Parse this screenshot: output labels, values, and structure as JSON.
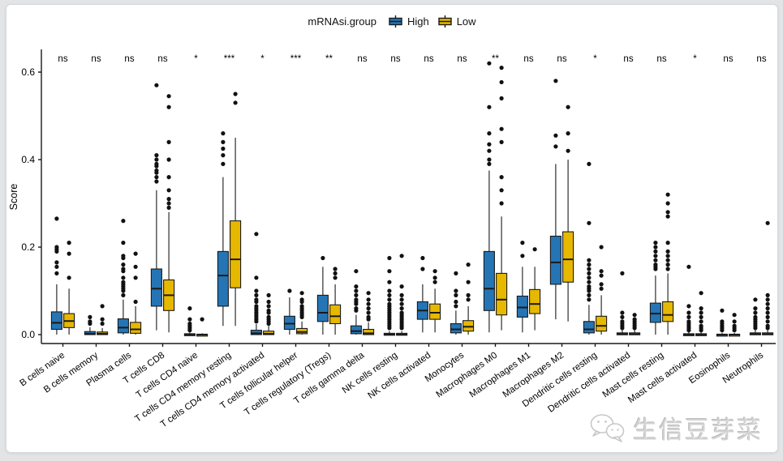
{
  "page": {
    "background": "#e2e4e6",
    "card_background": "#ffffff"
  },
  "legend": {
    "title": "mRNAsi.group",
    "items": [
      {
        "label": "High",
        "color": "#2575b5"
      },
      {
        "label": "Low",
        "color": "#e7b800"
      }
    ]
  },
  "watermark": {
    "text": "生信豆芽菜",
    "icon": "wechat-chat-bubbles-icon"
  },
  "chart_data": {
    "type": "boxplot",
    "title": "",
    "xlabel": "",
    "ylabel": "Score",
    "ylim": [
      0,
      0.63
    ],
    "yticks": [
      "0.0",
      "0.2",
      "0.4",
      "0.6"
    ],
    "ytick_values": [
      0.0,
      0.2,
      0.4,
      0.6
    ],
    "grid": false,
    "legend_position": "top",
    "group_field": "mRNAsi.group",
    "groups": [
      "High",
      "Low"
    ],
    "colors": {
      "High": "#2575b5",
      "Low": "#e7b800",
      "outline": "#1a1a1a",
      "point": "#111111"
    },
    "categories": [
      "B cells naive",
      "B cells memory",
      "Plasma cells",
      "T cells CD8",
      "T cells CD4 naive",
      "T cells CD4 memory resting",
      "T cells CD4 memory activated",
      "T cells follicular helper",
      "T cells regulatory (Tregs)",
      "T cells gamma delta",
      "NK cells resting",
      "NK cells activated",
      "Monocytes",
      "Macrophages M0",
      "Macrophages M1",
      "Macrophages M2",
      "Dendritic cells resting",
      "Dendritic cells activated",
      "Mast cells resting",
      "Mast cells activated",
      "Eosinophils",
      "Neutrophils"
    ],
    "significance": [
      "ns",
      "ns",
      "ns",
      "ns",
      "*",
      "***",
      "*",
      "***",
      "**",
      "ns",
      "ns",
      "ns",
      "ns",
      "**",
      "ns",
      "ns",
      "*",
      "ns",
      "ns",
      "*",
      "ns",
      "ns"
    ],
    "series": [
      {
        "name": "High",
        "stats": [
          [
            0,
            0.012,
            0.027,
            0.052,
            0.115
          ],
          [
            0,
            0,
            0.002,
            0.007,
            0.017
          ],
          [
            0,
            0.004,
            0.016,
            0.036,
            0.08
          ],
          [
            0.01,
            0.065,
            0.105,
            0.15,
            0.33
          ],
          [
            0,
            0,
            0,
            0.002,
            0.005
          ],
          [
            0.02,
            0.065,
            0.135,
            0.19,
            0.36
          ],
          [
            0,
            0,
            0.003,
            0.01,
            0.024
          ],
          [
            0,
            0.012,
            0.025,
            0.042,
            0.085
          ],
          [
            0,
            0.03,
            0.05,
            0.09,
            0.155
          ],
          [
            0,
            0.002,
            0.008,
            0.02,
            0.045
          ],
          [
            0,
            0,
            0,
            0.003,
            0.008
          ],
          [
            0.005,
            0.035,
            0.055,
            0.075,
            0.115
          ],
          [
            0,
            0.004,
            0.012,
            0.025,
            0.055
          ],
          [
            0.005,
            0.055,
            0.105,
            0.19,
            0.375
          ],
          [
            0.005,
            0.04,
            0.062,
            0.088,
            0.155
          ],
          [
            0.035,
            0.115,
            0.165,
            0.225,
            0.39
          ],
          [
            0,
            0.004,
            0.012,
            0.03,
            0.068
          ],
          [
            0,
            0,
            0.001,
            0.004,
            0.01
          ],
          [
            0,
            0.028,
            0.048,
            0.072,
            0.135
          ],
          [
            0,
            0,
            0,
            0.002,
            0.006
          ],
          [
            0,
            0,
            0,
            0.001,
            0.004
          ],
          [
            0,
            0,
            0.001,
            0.004,
            0.01
          ]
        ],
        "outliers": [
          [
            0.14,
            0.155,
            0.165,
            0.19,
            0.195,
            0.2,
            0.265
          ],
          [
            0.025,
            0.03,
            0.04
          ],
          [
            0.09,
            0.1,
            0.105,
            0.11,
            0.115,
            0.12,
            0.13,
            0.145,
            0.15,
            0.16,
            0.175,
            0.18,
            0.21,
            0.26
          ],
          [
            0.35,
            0.36,
            0.37,
            0.375,
            0.385,
            0.39,
            0.4,
            0.41,
            0.57
          ],
          [
            0.01,
            0.015,
            0.02,
            0.025,
            0.035,
            0.06
          ],
          [
            0.39,
            0.41,
            0.425,
            0.44,
            0.46
          ],
          [
            0.03,
            0.035,
            0.04,
            0.045,
            0.05,
            0.055,
            0.06,
            0.065,
            0.075,
            0.08,
            0.09,
            0.1,
            0.13,
            0.23
          ],
          [
            0.1
          ],
          [
            0.175
          ],
          [
            0.055,
            0.06,
            0.07,
            0.075,
            0.08,
            0.09,
            0.1,
            0.11,
            0.145
          ],
          [
            0.015,
            0.02,
            0.025,
            0.03,
            0.035,
            0.04,
            0.045,
            0.05,
            0.055,
            0.06,
            0.065,
            0.07,
            0.08,
            0.09,
            0.1,
            0.12,
            0.145,
            0.175
          ],
          [
            0.15,
            0.175
          ],
          [
            0.065,
            0.075,
            0.09,
            0.1,
            0.14
          ],
          [
            0.39,
            0.4,
            0.42,
            0.435,
            0.46,
            0.52,
            0.62
          ],
          [
            0.18,
            0.21
          ],
          [
            0.43,
            0.455,
            0.58
          ],
          [
            0.08,
            0.09,
            0.1,
            0.105,
            0.11,
            0.12,
            0.13,
            0.14,
            0.15,
            0.16,
            0.17,
            0.255,
            0.39
          ],
          [
            0.015,
            0.02,
            0.025,
            0.03,
            0.04,
            0.05,
            0.14
          ],
          [
            0.15,
            0.155,
            0.16,
            0.17,
            0.18,
            0.19,
            0.2,
            0.21
          ],
          [
            0.01,
            0.015,
            0.02,
            0.025,
            0.03,
            0.04,
            0.05,
            0.065,
            0.155
          ],
          [
            0.01,
            0.015,
            0.02,
            0.025,
            0.03,
            0.055
          ],
          [
            0.015,
            0.02,
            0.025,
            0.03,
            0.035,
            0.04,
            0.05,
            0.06,
            0.08
          ]
        ]
      },
      {
        "name": "Low",
        "stats": [
          [
            0,
            0.016,
            0.031,
            0.048,
            0.105
          ],
          [
            0,
            0,
            0.002,
            0.006,
            0.015
          ],
          [
            0,
            0.003,
            0.012,
            0.028,
            0.065
          ],
          [
            0.005,
            0.055,
            0.09,
            0.125,
            0.28
          ],
          [
            0,
            0,
            0,
            0.001,
            0.003
          ],
          [
            0.02,
            0.107,
            0.172,
            0.26,
            0.45
          ],
          [
            0,
            0,
            0.002,
            0.008,
            0.02
          ],
          [
            0,
            0.002,
            0.006,
            0.014,
            0.03
          ],
          [
            0,
            0.025,
            0.042,
            0.068,
            0.115
          ],
          [
            0,
            0,
            0.003,
            0.012,
            0.028
          ],
          [
            0,
            0,
            0,
            0.003,
            0.008
          ],
          [
            0.005,
            0.035,
            0.05,
            0.07,
            0.105
          ],
          [
            0,
            0.008,
            0.018,
            0.032,
            0.065
          ],
          [
            0.01,
            0.045,
            0.08,
            0.14,
            0.27
          ],
          [
            0.01,
            0.048,
            0.07,
            0.103,
            0.155
          ],
          [
            0.03,
            0.12,
            0.172,
            0.235,
            0.4
          ],
          [
            0,
            0.008,
            0.02,
            0.042,
            0.09
          ],
          [
            0,
            0,
            0.001,
            0.004,
            0.01
          ],
          [
            0,
            0.03,
            0.045,
            0.075,
            0.14
          ],
          [
            0,
            0,
            0,
            0.002,
            0.006
          ],
          [
            0,
            0,
            0,
            0.001,
            0.004
          ],
          [
            0,
            0,
            0.001,
            0.004,
            0.01
          ]
        ],
        "outliers": [
          [
            0.13,
            0.185,
            0.21
          ],
          [
            0.025,
            0.035,
            0.065
          ],
          [
            0.075,
            0.13,
            0.155,
            0.185
          ],
          [
            0.29,
            0.3,
            0.31,
            0.33,
            0.36,
            0.4,
            0.44,
            0.52,
            0.545
          ],
          [
            0.035
          ],
          [
            0.53,
            0.55
          ],
          [
            0.025,
            0.03,
            0.035,
            0.04,
            0.05,
            0.055,
            0.065,
            0.075,
            0.09
          ],
          [
            0.04,
            0.045,
            0.05,
            0.055,
            0.06,
            0.065,
            0.075,
            0.08,
            0.095
          ],
          [
            0.13,
            0.14,
            0.15
          ],
          [
            0.035,
            0.04,
            0.05,
            0.06,
            0.07,
            0.08,
            0.095
          ],
          [
            0.015,
            0.02,
            0.025,
            0.03,
            0.035,
            0.04,
            0.045,
            0.05,
            0.06,
            0.07,
            0.08,
            0.09,
            0.11,
            0.18
          ],
          [
            0.12,
            0.13,
            0.145
          ],
          [
            0.08,
            0.09,
            0.12,
            0.16
          ],
          [
            0.3,
            0.33,
            0.36,
            0.44,
            0.47,
            0.54,
            0.577,
            0.61
          ],
          [
            0.195
          ],
          [
            0.42,
            0.46,
            0.52
          ],
          [
            0.105,
            0.115,
            0.135,
            0.145,
            0.2
          ],
          [
            0.015,
            0.02,
            0.025,
            0.03,
            0.035,
            0.045
          ],
          [
            0.15,
            0.16,
            0.17,
            0.18,
            0.19,
            0.21,
            0.27,
            0.28,
            0.3,
            0.32
          ],
          [
            0.01,
            0.015,
            0.02,
            0.03,
            0.04,
            0.05,
            0.06,
            0.095
          ],
          [
            0.01,
            0.015,
            0.02,
            0.03,
            0.045
          ],
          [
            0.015,
            0.02,
            0.03,
            0.04,
            0.05,
            0.06,
            0.07,
            0.08,
            0.09,
            0.255
          ]
        ]
      }
    ]
  }
}
